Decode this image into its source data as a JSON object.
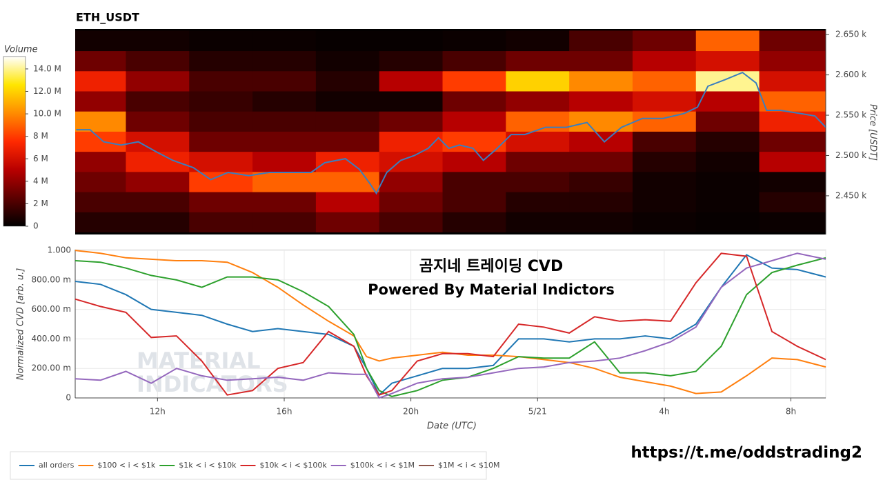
{
  "chart_data": [
    {
      "type": "heatmap",
      "title": "ETH_USDT",
      "xlim": [
        9.4,
        33.1
      ],
      "xbins": [
        9.4,
        11,
        13,
        15,
        17,
        19,
        21,
        23,
        25,
        27,
        29,
        31,
        33.1
      ],
      "ybins": [
        2405,
        2430,
        2455,
        2480,
        2505,
        2530,
        2555,
        2580,
        2605,
        2630,
        2655
      ],
      "z": [
        [
          1,
          1,
          2,
          2,
          3,
          2,
          1,
          0.5,
          0.5,
          0.3,
          0.2,
          0.3
        ],
        [
          2,
          2,
          3,
          3,
          5,
          3,
          2,
          1,
          1,
          0.5,
          0.3,
          1
        ],
        [
          3,
          4,
          8,
          9,
          9,
          4,
          2,
          2,
          1.5,
          0.5,
          0.3,
          0.5
        ],
        [
          4,
          7,
          6,
          5,
          7,
          6,
          5,
          3,
          3,
          1,
          0.5,
          5
        ],
        [
          8,
          6,
          3,
          3,
          3,
          7,
          8,
          6,
          5,
          2,
          1,
          3
        ],
        [
          10,
          3,
          2,
          2,
          2,
          3,
          5,
          9,
          10,
          9,
          3,
          7
        ],
        [
          4,
          2,
          1.5,
          1,
          0.5,
          0.5,
          3,
          4,
          5,
          6,
          5,
          9
        ],
        [
          7,
          4,
          2,
          2,
          1,
          5,
          8,
          12,
          10,
          9,
          14,
          6
        ],
        [
          3,
          2,
          1,
          1,
          0.5,
          1,
          2,
          3,
          3,
          5,
          6,
          4
        ],
        [
          0.5,
          0.5,
          0.3,
          0.3,
          0.2,
          0.2,
          0.3,
          0.5,
          2,
          3,
          9,
          3
        ]
      ],
      "colorscale": [
        "#000000",
        "#5c0000",
        "#b80000",
        "#ff2a00",
        "#ff8c00",
        "#ffe600",
        "#ffffff"
      ],
      "zlabel": "Volume",
      "zlim": [
        0,
        15.1
      ],
      "zticks": [
        0,
        {
          "value": 2,
          "label": "2 M"
        },
        {
          "value": 4,
          "label": "4 M"
        },
        {
          "value": 6,
          "label": "6 M"
        },
        {
          "value": 8,
          "label": "8 M"
        },
        {
          "value": 10,
          "label": "10.0 M"
        },
        {
          "value": 12,
          "label": "12.0 M"
        },
        {
          "value": 14,
          "label": "14.0 M"
        }
      ],
      "ylabel": "Price [USDT]",
      "ylim": [
        2402,
        2657
      ],
      "yticks": [
        {
          "value": 2450,
          "label": "2.450 k"
        },
        {
          "value": 2500,
          "label": "2.500 k"
        },
        {
          "value": 2550,
          "label": "2.550 k"
        },
        {
          "value": 2600,
          "label": "2.600 k"
        },
        {
          "value": 2650,
          "label": "2.650 k"
        }
      ],
      "price_line": {
        "color": "#3a7ebf",
        "x": [
          9.43,
          9.87,
          10.3,
          10.85,
          11.39,
          11.94,
          12.48,
          13.13,
          13.68,
          14.23,
          14.88,
          15.53,
          16.19,
          16.85,
          17.28,
          17.93,
          18.37,
          18.69,
          18.91,
          19.24,
          19.68,
          20.11,
          20.55,
          20.87,
          21.2,
          21.53,
          21.96,
          22.29,
          22.73,
          23.17,
          23.6,
          24.25,
          24.91,
          25.56,
          26.11,
          26.65,
          27.31,
          27.96,
          28.62,
          29.05,
          29.38,
          29.92,
          30.47,
          30.9,
          31.23,
          31.67,
          32.32,
          32.76,
          33.1
        ],
        "values": [
          2532,
          2532,
          2517,
          2513,
          2517,
          2505,
          2494,
          2485,
          2470,
          2479,
          2475,
          2479,
          2479,
          2479,
          2491,
          2496,
          2483,
          2466,
          2453,
          2479,
          2494,
          2500,
          2509,
          2522,
          2509,
          2513,
          2509,
          2494,
          2509,
          2526,
          2526,
          2535,
          2535,
          2541,
          2517,
          2535,
          2546,
          2546,
          2552,
          2560,
          2586,
          2594,
          2603,
          2590,
          2556,
          2556,
          2552,
          2549,
          2535
        ]
      }
    },
    {
      "type": "line",
      "xlabel": "Date (UTC)",
      "ylabel": "Normalized CVD [arb. u.]",
      "xlim": [
        9.4,
        33.1
      ],
      "xticks": [
        {
          "value": 12,
          "label": "12h"
        },
        {
          "value": 16,
          "label": "16h"
        },
        {
          "value": 20,
          "label": "20h"
        },
        {
          "value": 24,
          "label": "5/21"
        },
        {
          "value": 28,
          "label": "4h"
        },
        {
          "value": 32,
          "label": "8h"
        }
      ],
      "ylim": [
        0,
        1.005
      ],
      "yticks": [
        0,
        {
          "value": 0.2,
          "label": "200.00 m"
        },
        {
          "value": 0.4,
          "label": "400.00 m"
        },
        {
          "value": 0.6,
          "label": "600.00 m"
        },
        {
          "value": 0.8,
          "label": "800.00 m"
        },
        {
          "value": 1,
          "label": "1.000"
        }
      ],
      "grid": true,
      "x": [
        9.4,
        10.2,
        11,
        11.8,
        12.6,
        13.4,
        14.2,
        15,
        15.8,
        16.6,
        17.4,
        18.2,
        18.6,
        19,
        19.4,
        20.2,
        21,
        21.8,
        22.6,
        23.4,
        24.2,
        25,
        25.8,
        26.6,
        27.4,
        28.2,
        29,
        29.8,
        30.6,
        31.4,
        32.2,
        33.1
      ],
      "series": [
        {
          "name": "all orders",
          "color": "#1f77b4",
          "values": [
            0.79,
            0.77,
            0.7,
            0.6,
            0.58,
            0.56,
            0.5,
            0.45,
            0.47,
            0.45,
            0.43,
            0.35,
            0.2,
            0.02,
            0.1,
            0.15,
            0.2,
            0.2,
            0.22,
            0.4,
            0.4,
            0.38,
            0.4,
            0.4,
            0.42,
            0.4,
            0.5,
            0.75,
            0.97,
            0.88,
            0.87,
            0.82
          ]
        },
        {
          "name": "$100 < i < $1k",
          "color": "#ff7f0e",
          "values": [
            1.0,
            0.98,
            0.95,
            0.94,
            0.93,
            0.93,
            0.92,
            0.85,
            0.75,
            0.63,
            0.52,
            0.42,
            0.28,
            0.25,
            0.27,
            0.29,
            0.31,
            0.29,
            0.29,
            0.28,
            0.26,
            0.24,
            0.2,
            0.14,
            0.11,
            0.08,
            0.03,
            0.04,
            0.15,
            0.27,
            0.26,
            0.21
          ]
        },
        {
          "name": "$1k < i < $10k",
          "color": "#2ca02c",
          "values": [
            0.93,
            0.92,
            0.88,
            0.83,
            0.8,
            0.75,
            0.82,
            0.82,
            0.8,
            0.72,
            0.62,
            0.43,
            0.2,
            0.05,
            0.01,
            0.05,
            0.12,
            0.14,
            0.2,
            0.28,
            0.27,
            0.27,
            0.38,
            0.17,
            0.17,
            0.15,
            0.18,
            0.35,
            0.7,
            0.85,
            0.9,
            0.95
          ]
        },
        {
          "name": "$10k < i < $100k",
          "color": "#d62728",
          "values": [
            0.67,
            0.62,
            0.58,
            0.41,
            0.42,
            0.25,
            0.02,
            0.05,
            0.2,
            0.24,
            0.45,
            0.35,
            0.15,
            0.02,
            0.05,
            0.25,
            0.3,
            0.3,
            0.28,
            0.5,
            0.48,
            0.44,
            0.55,
            0.52,
            0.53,
            0.52,
            0.78,
            0.98,
            0.96,
            0.45,
            0.35,
            0.26
          ]
        },
        {
          "name": "$100k < i < $1M",
          "color": "#9467bd",
          "values": [
            0.13,
            0.12,
            0.18,
            0.1,
            0.2,
            0.15,
            0.12,
            0.13,
            0.14,
            0.12,
            0.17,
            0.16,
            0.16,
            0.0,
            0.03,
            0.1,
            0.13,
            0.14,
            0.17,
            0.2,
            0.21,
            0.24,
            0.25,
            0.27,
            0.32,
            0.38,
            0.48,
            0.75,
            0.88,
            0.93,
            0.98,
            0.94
          ]
        },
        {
          "name": "$1M < i < $10M",
          "color": "#8c564b",
          "values": [
            null,
            null,
            null,
            null,
            null,
            null,
            null,
            null,
            null,
            null,
            null,
            null,
            null,
            null,
            null,
            null,
            null,
            null,
            null,
            null,
            null,
            null,
            null,
            null,
            null,
            null,
            null,
            null,
            null,
            null,
            null,
            null
          ]
        }
      ],
      "watermark": [
        "MATERIAL",
        "INDICATORS"
      ],
      "annotations": [
        "곰지네 트레이딩 CVD",
        "Powered By Material Indictors",
        "https://t.me/oddstrading2"
      ]
    }
  ]
}
